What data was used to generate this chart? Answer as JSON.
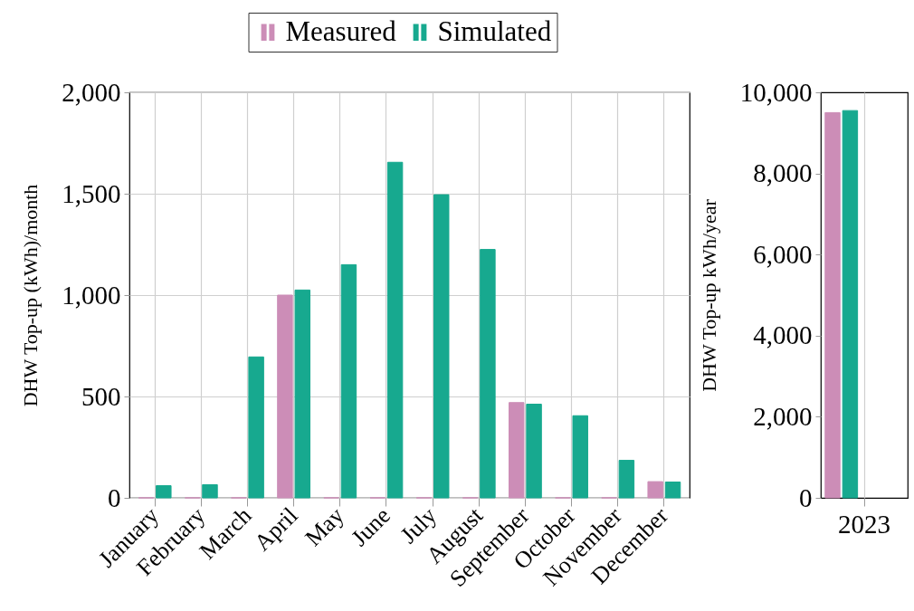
{
  "chart_data": [
    {
      "type": "bar",
      "ylabel": "DHW Top-up (kWh)/month",
      "categories": [
        "January",
        "February",
        "March",
        "April",
        "May",
        "June",
        "July",
        "August",
        "September",
        "October",
        "November",
        "December"
      ],
      "series": [
        {
          "name": "Measured",
          "color": "#cc8db7",
          "values": [
            0,
            0,
            0,
            1000,
            0,
            0,
            0,
            0,
            470,
            0,
            0,
            80
          ]
        },
        {
          "name": "Simulated",
          "color": "#17a98f",
          "values": [
            60,
            65,
            695,
            1025,
            1150,
            1655,
            1495,
            1225,
            462,
            405,
            185,
            78
          ]
        }
      ],
      "ylim": [
        0,
        2000
      ],
      "yticks": [
        0,
        500,
        {
          "value": 1000,
          "label": "1,000"
        },
        {
          "value": 1500,
          "label": "1,500"
        },
        {
          "value": 2000,
          "label": "2,000"
        }
      ],
      "grid": true,
      "legend": "top"
    },
    {
      "type": "bar",
      "ylabel": "DHW Top-up kWh/year",
      "categories": [
        "2023"
      ],
      "series": [
        {
          "color": "#cc8db7",
          "values": [
            9500
          ]
        },
        {
          "color": "#17a98f",
          "values": [
            9550
          ]
        }
      ],
      "ylim": [
        0,
        10000
      ],
      "yticks": [
        0,
        {
          "value": 2000,
          "label": "2,000"
        },
        {
          "value": 4000,
          "label": "4,000"
        },
        {
          "value": 6000,
          "label": "6,000"
        },
        {
          "value": 8000,
          "label": "8,000"
        },
        {
          "value": 10000,
          "label": "10,000"
        }
      ],
      "grid": "x"
    }
  ]
}
